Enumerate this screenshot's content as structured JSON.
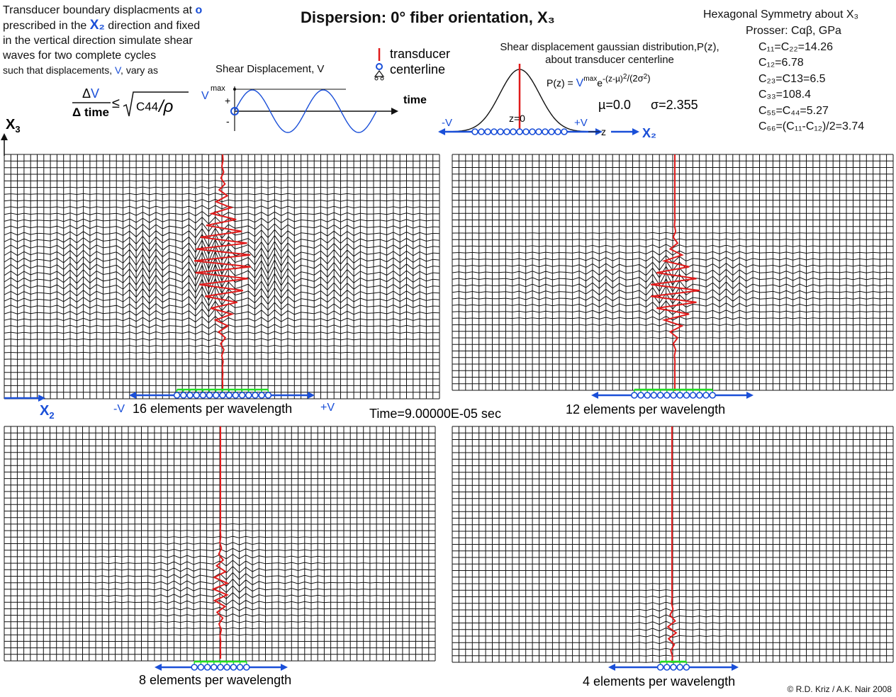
{
  "title": "Dispersion: 0° fiber orientation, X₃",
  "intro": {
    "line1_a": "Transducer boundary displacments at ",
    "line1_b": "o",
    "line2_a": "prescribed in the ",
    "line2_b": "X₂",
    "line2_c": " direction and fixed",
    "line3": "in the vertical direction simulate shear",
    "line4": "waves for two complete cycles",
    "line5_a": "such that displacements, ",
    "line5_b": "V",
    "line5_c": ", vary as",
    "formula": "ΔV / Δtime ≤ √(C44/ρ)"
  },
  "shear_plot": {
    "label": "Shear Displacement, V",
    "vmax": "V",
    "vmax_sup": "max",
    "plus": "+",
    "minus": "-",
    "time": "time"
  },
  "legend": {
    "transducer": "transducer",
    "centerline": "centerline"
  },
  "gauss": {
    "caption1": "Shear displacement gaussian distribution,P(z),",
    "caption2": "about transducer centerline",
    "formula": "P(z) = Vᵐᵃˣe⁻⁽ᶻ⁻µ⁾²/(2σ²)",
    "mu": "µ=0.0",
    "sigma": "σ=2.355",
    "z0": "z=0",
    "neg_v": "-V",
    "pos_v": "+V",
    "z": "z",
    "x2": "X₂"
  },
  "hex": {
    "title": "Hexagonal Symmetry about X₃",
    "prosser": "Prosser: Cαβ, GPa",
    "c11": "C₁₁=C₂₂=14.26",
    "c12": "C₁₂=6.78",
    "c23": "C₂₃=C13=6.5",
    "c33": "C₃₃=108.4",
    "c55": "C₅₅=C₄₄=5.27",
    "c66": "C₆₆=(C₁₁-C₁₂)/2=3.74"
  },
  "axes": {
    "x3": "X₃",
    "x2": "X₂"
  },
  "panels": [
    {
      "caption": "16 elements per wavelength",
      "neg": "-V",
      "pos": "+V"
    },
    {
      "caption": "12 elements per wavelength"
    },
    {
      "caption": "8 elements per wavelength"
    },
    {
      "caption": "4 elements per wavelength"
    }
  ],
  "time": "Time=9.00000E-05 sec",
  "copyright": "© R.D. Kriz / A.K. Nair 2008",
  "colors": {
    "blue": "#1a4fd8",
    "red": "#e01b1b",
    "green": "#22dd22",
    "mesh": "#111111"
  }
}
